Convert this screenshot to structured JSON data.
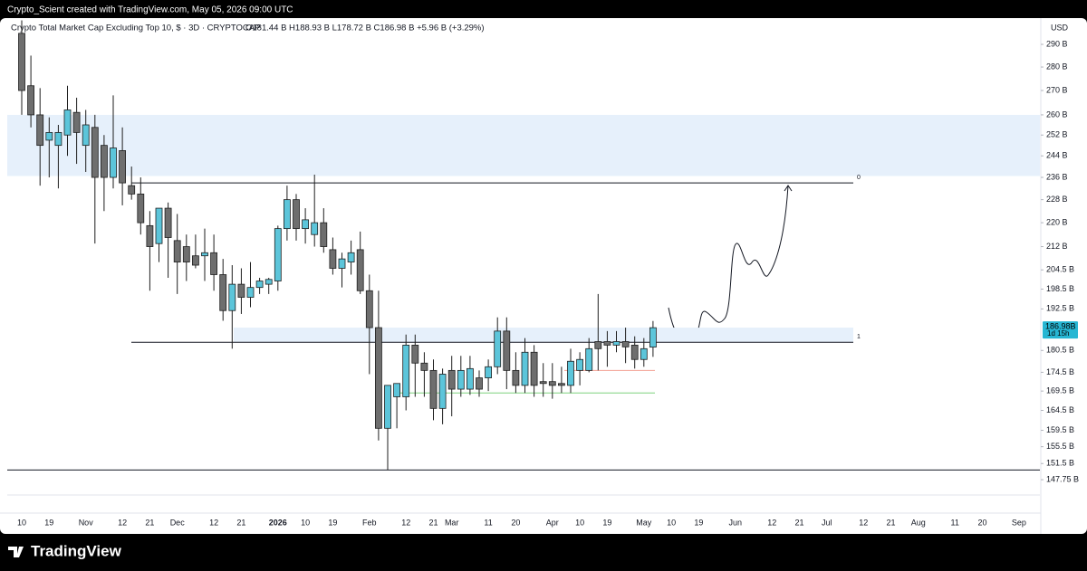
{
  "chart_data": {
    "type": "candlestick",
    "byline": "Crypto_Scient created with TradingView.com, May 05, 2026 09:00 UTC",
    "title": "Crypto Total Market Cap Excluding Top 10, $ · 3D · CRYPTOCAP",
    "ohlc_label": "O181.44 B  H188.93 B  L178.72 B  C186.98 B  +5.96 B (+3.29%)",
    "currency": "USD",
    "brand": "TradingView",
    "log_scale": true,
    "ylim": [
      140.7,
      301.2
    ],
    "yticks": [
      {
        "value": 290,
        "label": "290 B"
      },
      {
        "value": 280,
        "label": "280 B"
      },
      {
        "value": 270,
        "label": "270 B"
      },
      {
        "value": 260,
        "label": "260 B"
      },
      {
        "value": 252,
        "label": "252 B"
      },
      {
        "value": 244,
        "label": "244 B"
      },
      {
        "value": 236,
        "label": "236 B"
      },
      {
        "value": 228,
        "label": "228 B"
      },
      {
        "value": 220,
        "label": "220 B"
      },
      {
        "value": 212,
        "label": "212 B"
      },
      {
        "value": 204.5,
        "label": "204.5 B"
      },
      {
        "value": 198.5,
        "label": "198.5 B"
      },
      {
        "value": 192.5,
        "label": "192.5 B"
      },
      {
        "value": 180.5,
        "label": "180.5 B"
      },
      {
        "value": 174.5,
        "label": "174.5 B"
      },
      {
        "value": 169.5,
        "label": "169.5 B"
      },
      {
        "value": 164.5,
        "label": "164.5 B"
      },
      {
        "value": 159.5,
        "label": "159.5 B"
      },
      {
        "value": 155.5,
        "label": "155.5 B"
      },
      {
        "value": 151.5,
        "label": "151.5 B"
      },
      {
        "value": 147.75,
        "label": "147.75 B"
      }
    ],
    "categories": [
      "10",
      null,
      null,
      "19",
      null,
      null,
      null,
      "Nov",
      null,
      null,
      null,
      "12",
      null,
      null,
      "21",
      null,
      null,
      "Dec",
      null,
      null,
      null,
      "12",
      null,
      null,
      "21",
      null,
      null,
      null,
      "2026",
      null,
      null,
      "10",
      null,
      null,
      "19",
      null,
      null,
      null,
      "Feb",
      null,
      null,
      null,
      "12",
      null,
      null,
      "21",
      null,
      "Mar",
      null,
      null,
      null,
      "11",
      null,
      null,
      "20",
      null,
      null,
      null,
      "Apr",
      null,
      null,
      "10",
      null,
      null,
      "19",
      null,
      null,
      null,
      "May",
      null,
      null,
      "10",
      null,
      null,
      "19",
      null,
      null,
      null,
      "Jun",
      null,
      null,
      null,
      "12",
      null,
      null,
      "21",
      null,
      null,
      "Jul",
      null,
      null,
      null,
      "12",
      null,
      null,
      "21",
      null,
      null,
      "Aug",
      null,
      null,
      null,
      "11",
      null,
      null,
      "20",
      null,
      null,
      null,
      "Sep"
    ],
    "open": [
      295,
      272,
      260,
      250,
      248,
      252,
      261,
      248,
      255,
      248,
      236,
      246,
      233,
      230,
      219,
      213,
      225,
      214,
      212,
      209,
      209,
      210,
      203,
      192,
      200,
      196,
      199,
      200,
      201,
      218,
      228,
      218,
      216,
      220,
      211,
      205,
      207,
      211,
      198,
      187,
      160,
      168,
      168,
      182,
      177,
      175,
      165,
      175,
      170,
      170,
      173,
      173,
      176,
      186,
      175,
      171,
      180,
      172,
      172,
      171.5,
      171,
      175,
      175,
      183,
      183,
      182,
      183,
      182,
      178,
      181.44,
      null,
      null,
      null,
      null,
      null,
      null,
      null,
      null,
      null,
      null,
      null,
      null,
      null,
      null,
      null,
      null,
      null,
      null,
      null,
      null,
      null,
      null,
      null,
      null,
      null,
      null,
      null,
      null,
      null,
      null,
      null,
      null,
      null,
      null,
      null,
      null,
      null,
      null,
      null,
      null
    ],
    "high": [
      301,
      285,
      271,
      259,
      256,
      272,
      267,
      262,
      260,
      252,
      268,
      255,
      240,
      236,
      224,
      224,
      227,
      223,
      216,
      216,
      218,
      216,
      208,
      206,
      205,
      207,
      202,
      202,
      219,
      233,
      230,
      225,
      237,
      225,
      215,
      210,
      214,
      217,
      203,
      198,
      171,
      171,
      185,
      185,
      180,
      178,
      175.5,
      179,
      179,
      179,
      175,
      178,
      190,
      190,
      180,
      184,
      182,
      177,
      177,
      176,
      181,
      180,
      184,
      197,
      186,
      186,
      187,
      184.5,
      184,
      188.93,
      null,
      null,
      null,
      null,
      null,
      null,
      null,
      null,
      null,
      null,
      null,
      null,
      null,
      null,
      null,
      null,
      null,
      null,
      null,
      null,
      null,
      null,
      null,
      null,
      null,
      null,
      null,
      null,
      null,
      null,
      null,
      null,
      null,
      null,
      null,
      null,
      null,
      null,
      null,
      null
    ],
    "low": [
      260,
      255,
      233,
      236,
      232,
      244,
      241,
      238,
      213,
      224,
      232,
      226,
      228,
      216,
      198,
      207,
      202,
      197,
      201,
      205,
      201,
      198,
      189,
      181,
      191,
      193,
      197,
      197,
      198,
      214,
      214,
      213,
      212,
      210,
      203,
      199,
      203,
      197,
      174,
      157,
      150,
      160,
      164.5,
      168,
      168,
      162,
      161,
      163,
      168,
      168.5,
      168,
      169.5,
      174,
      170,
      169,
      169,
      168,
      168,
      167.5,
      169,
      169,
      171,
      174.5,
      175,
      176,
      180,
      177,
      175.5,
      176,
      178.72,
      null,
      null,
      null,
      null,
      null,
      null,
      null,
      null,
      null,
      null,
      null,
      null,
      null,
      null,
      null,
      null,
      null,
      null,
      null,
      null,
      null,
      null,
      null,
      null,
      null,
      null,
      null,
      null,
      null,
      null,
      null,
      null,
      null,
      null,
      null,
      null,
      null,
      null,
      null,
      null
    ],
    "close": [
      270,
      260,
      248,
      253,
      253,
      262,
      253,
      256,
      236,
      236,
      247,
      234,
      230,
      220,
      212,
      225,
      215,
      207,
      207,
      206,
      210,
      203,
      192,
      200,
      196,
      199,
      201,
      201.5,
      218,
      228,
      218,
      221,
      220,
      212,
      205,
      208,
      210,
      198,
      187,
      160,
      171,
      171.5,
      182,
      177,
      175,
      165,
      174,
      170,
      175,
      175.5,
      170,
      176,
      186,
      175,
      171,
      180,
      171,
      171.5,
      171,
      171,
      177.5,
      178,
      181,
      181,
      182,
      183,
      181.5,
      178,
      181,
      186.98,
      null,
      null,
      null,
      null,
      null,
      null,
      null,
      null,
      null,
      null,
      null,
      null,
      null,
      null,
      null,
      null,
      null,
      null,
      null,
      null,
      null,
      null,
      null,
      null,
      null,
      null,
      null,
      null,
      null,
      null,
      null,
      null,
      null,
      null,
      null,
      null,
      null,
      null,
      null,
      null
    ],
    "colors": {
      "up": "#5cc5da",
      "down": "#6e6e6e",
      "outline": "#1e1e1e",
      "zone": "#e6f0fb"
    },
    "zones": [
      [
        236.5,
        260
      ],
      [
        182.9,
        187
      ]
    ],
    "levels": [
      {
        "value": 234,
        "label": "0"
      },
      {
        "value": 182.8,
        "label": "1"
      }
    ],
    "lines": [
      {
        "value": 150,
        "color": "#131722"
      },
      {
        "value": 175,
        "color": "#f2a093"
      },
      {
        "value": 169,
        "color": "#7fd27f"
      }
    ],
    "price_tag": {
      "value": 186.98,
      "label": "186.98B",
      "countdown": "1d 15h",
      "color": "#26b6d3"
    }
  }
}
